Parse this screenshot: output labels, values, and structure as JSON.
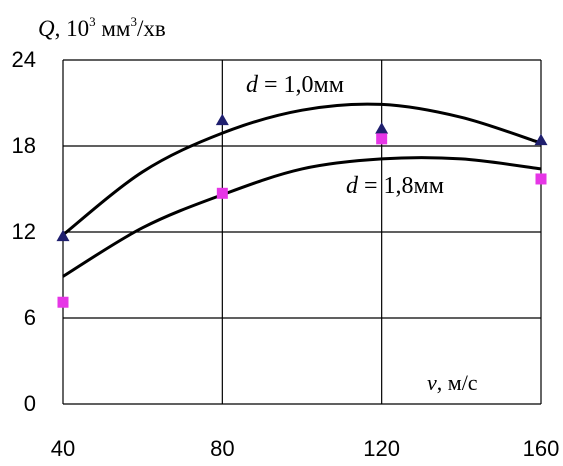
{
  "chart_data": {
    "type": "line",
    "ylabel_var": "Q",
    "ylabel_sep": ", 10",
    "ylabel_exp1": "3",
    "ylabel_mid": " мм",
    "ylabel_exp2": "3",
    "ylabel_end": "/хв",
    "xlabel_var": "v",
    "xlabel_unit": ", м/с",
    "x_ticks": [
      "40",
      "80",
      "120",
      "160"
    ],
    "y_ticks": [
      "0",
      "6",
      "12",
      "18",
      "24"
    ],
    "xlim": [
      40,
      160
    ],
    "ylim": [
      0,
      24
    ],
    "grid": true,
    "series": [
      {
        "name_var": "d",
        "name_rest": " = 1,0мм",
        "marker": "triangle",
        "marker_color": "#1f1f6e",
        "points": [
          [
            40,
            11.7
          ],
          [
            80,
            19.8
          ],
          [
            120,
            19.2
          ],
          [
            160,
            18.4
          ]
        ],
        "curve": [
          [
            40,
            11.8
          ],
          [
            60,
            16.2
          ],
          [
            80,
            18.9
          ],
          [
            100,
            20.5
          ],
          [
            120,
            20.9
          ],
          [
            140,
            20.0
          ],
          [
            160,
            18.2
          ]
        ]
      },
      {
        "name_var": "d",
        "name_rest": " = 1,8мм",
        "marker": "square",
        "marker_color": "#e636e6",
        "points": [
          [
            40,
            7.1
          ],
          [
            80,
            14.7
          ],
          [
            120,
            18.5
          ],
          [
            160,
            15.7
          ]
        ],
        "curve": [
          [
            40,
            8.9
          ],
          [
            60,
            12.3
          ],
          [
            80,
            14.6
          ],
          [
            100,
            16.4
          ],
          [
            120,
            17.1
          ],
          [
            140,
            17.1
          ],
          [
            160,
            16.4
          ]
        ]
      }
    ]
  }
}
